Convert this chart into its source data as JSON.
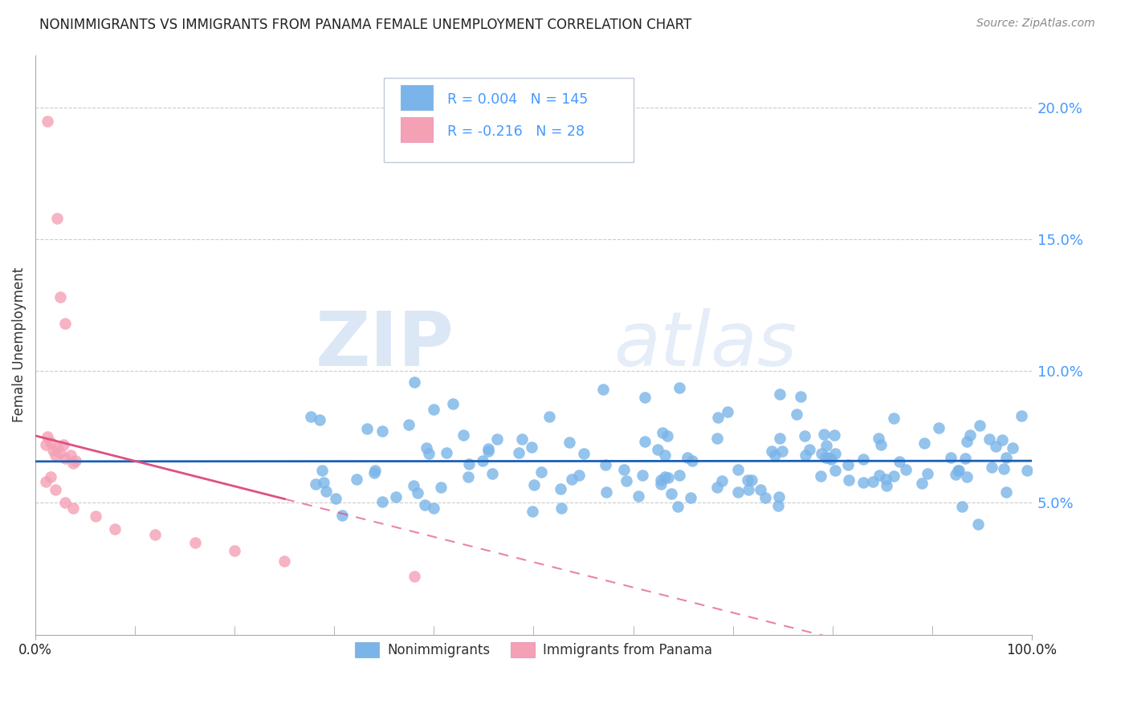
{
  "title": "NONIMMIGRANTS VS IMMIGRANTS FROM PANAMA FEMALE UNEMPLOYMENT CORRELATION CHART",
  "source": "Source: ZipAtlas.com",
  "ylabel": "Female Unemployment",
  "y_ticks": [
    0.05,
    0.1,
    0.15,
    0.2
  ],
  "y_tick_labels": [
    "5.0%",
    "10.0%",
    "15.0%",
    "20.0%"
  ],
  "legend_label1": "Nonimmigrants",
  "legend_label2": "Immigrants from Panama",
  "R1": 0.004,
  "N1": 145,
  "R2": -0.216,
  "N2": 28,
  "nonimmigrant_color": "#7ab4e8",
  "immigrant_color": "#f4a0b5",
  "nonimmigrant_line_color": "#1a5fb4",
  "immigrant_line_color": "#e05080",
  "background_color": "#ffffff",
  "watermark_zip": "ZIP",
  "watermark_atlas": "atlas",
  "xlim": [
    0.0,
    1.0
  ],
  "ylim": [
    0.0,
    0.22
  ],
  "tick_color": "#4499ff",
  "title_fontsize": 12,
  "axis_label_fontsize": 12
}
